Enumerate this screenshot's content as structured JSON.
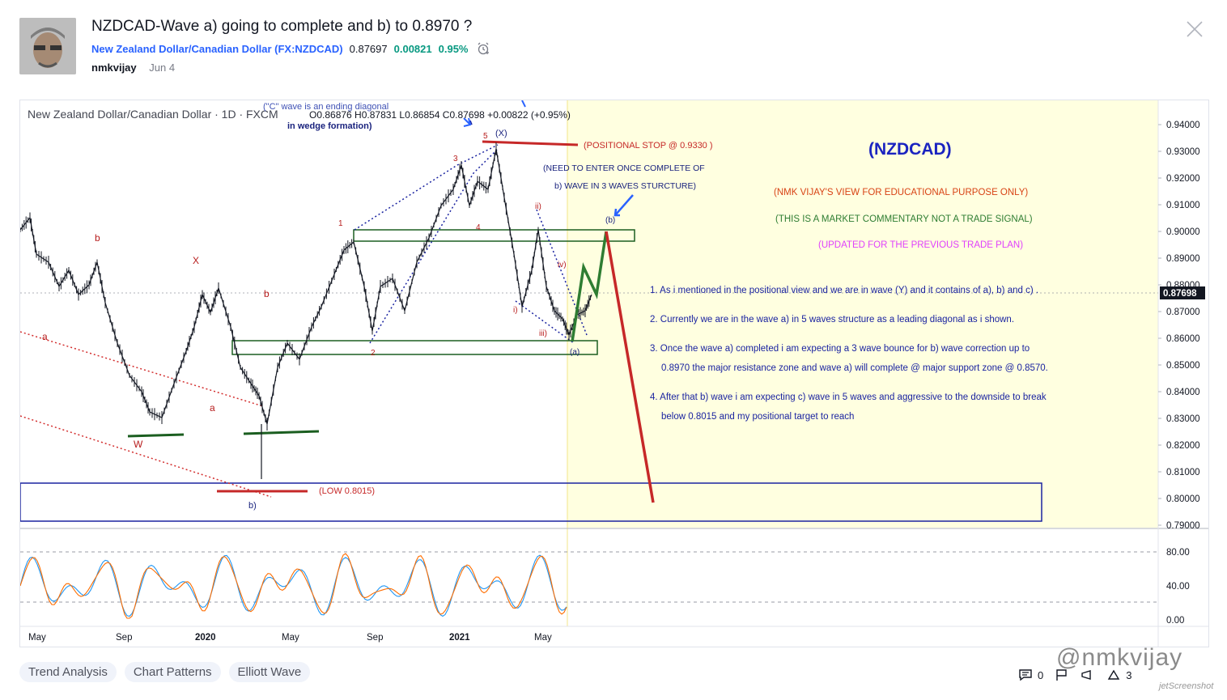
{
  "idea": {
    "title": "NZDCAD-Wave a) going to complete and b) to 0.8970 ?",
    "symbol_name": "New Zealand Dollar/Canadian Dollar",
    "symbol_code": "FX:NZDCAD",
    "price": "0.87697",
    "change": "0.00821",
    "change_pct": "0.95%",
    "author": "nmkvijay",
    "date": "Jun 4"
  },
  "chart": {
    "legend": "New Zealand Dollar/Canadian Dollar · 1D · FXCM",
    "ohlc": "O0.86876 H0.87831 L0.86854 C0.87698 +0.00822 (+0.95%)",
    "last_price_label": "0.87698",
    "price_axis": [
      "0.94000",
      "0.93000",
      "0.92000",
      "0.91000",
      "0.90000",
      "0.89000",
      "0.88000",
      "0.87000",
      "0.86000",
      "0.85000",
      "0.84000",
      "0.83000",
      "0.82000",
      "0.81000",
      "0.80000",
      "0.79000"
    ],
    "osc_axis": [
      "80.00",
      "40.00",
      "0.00"
    ],
    "time_axis": [
      "May",
      "Sep",
      "2020",
      "May",
      "Sep",
      "2021",
      "May"
    ],
    "annotations": {
      "heading": "(NZDCAD)",
      "disclaimer1": "(NMK VIJAY'S VIEW FOR EDUCATIONAL PURPOSE ONLY)",
      "disclaimer2": "(THIS IS A MARKET COMMENTARY NOT A TRADE SIGNAL)",
      "disclaimer3": "(UPDATED FOR THE PREVIOUS TRADE PLAN)",
      "point1": "1. As i mentioned in the positional view and we are in wave (Y) and it contains of a), b) and c) .",
      "point2": "2. Currently we are in the wave a) in 5 waves structure as a leading diagonal as i shown.",
      "point3a": "3. Once the wave a) completed i am expecting a 3 wave bounce for b) wave correction up to",
      "point3b": "0.8970 the major resistance zone and wave a) will complete @ major support zone @ 0.8570.",
      "point4a": "4. After that b) wave i am expecting c) wave in 5 waves and aggressive to the downside to break",
      "point4b": "below 0.8015 and my positional target to reach",
      "stop": "(POSITIONAL STOP @ 0.9330 )",
      "enter1": "(NEED TO ENTER ONCE COMPLETE OF",
      "enter2": "b) WAVE IN 3 WAVES STURCTURE)",
      "diag1": "(\"C\" wave is an ending diagonal",
      "diag2": "in wedge formation)",
      "low": "(LOW 0.8015)",
      "labels": {
        "b1": "b",
        "x": "X",
        "b2": "b",
        "a1": "a",
        "a2": "a",
        "w": "W",
        "b3": "b)",
        "w1": "1",
        "w2": "2",
        "w3": "3",
        "w4": "4",
        "w5": "5",
        "xx": "(X)",
        "ii": "ii)",
        "i": "i)",
        "iii": "iii)",
        "iv": "iv)",
        "pa": "(a)",
        "pb": "(b)"
      }
    }
  },
  "tags": [
    "Trend Analysis",
    "Chart Patterns",
    "Elliott Wave"
  ],
  "footer": {
    "comments": "0",
    "boosts": "3",
    "watermark": "@nmkvijay",
    "watermark_small": "jetScreenshot"
  },
  "colors": {
    "up": "#089981",
    "accent": "#2962ff",
    "zone_bg": "#ffffe0"
  }
}
